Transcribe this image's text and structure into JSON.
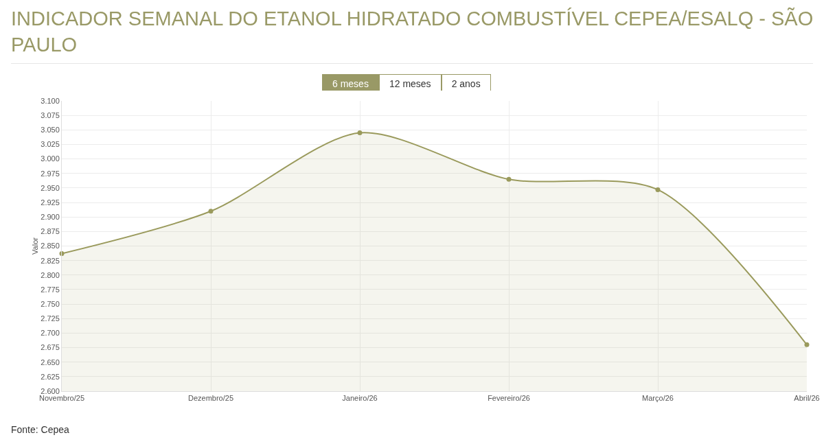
{
  "chart_data": {
    "type": "area",
    "title": "INDICADOR SEMANAL DO ETANOL HIDRATADO COMBUSTÍVEL CEPEA/ESALQ - SÃO PAULO",
    "ylabel": "Valor",
    "annotations": [
      "6 meses",
      "12 meses",
      "2 anos",
      "Fonte: Cepea"
    ],
    "categories": [
      "Novembro/25",
      "Dezembro/25",
      "Janeiro/26",
      "Fevereiro/26",
      "Março/26",
      "Abril/26"
    ],
    "values": [
      2.837,
      2.91,
      3.045,
      2.965,
      2.947,
      2.68
    ],
    "color": "#9a9a5c",
    "marker": "circle",
    "grid": true,
    "legend": false,
    "ylim": [
      2.6,
      3.1
    ],
    "yticks": [
      {
        "value": 2.6,
        "label": "2.600"
      },
      {
        "value": 2.625,
        "label": "2.625"
      },
      {
        "value": 2.65,
        "label": "2.650"
      },
      {
        "value": 2.675,
        "label": "2.675"
      },
      {
        "value": 2.7,
        "label": "2.700"
      },
      {
        "value": 2.725,
        "label": "2.725"
      },
      {
        "value": 2.75,
        "label": "2.750"
      },
      {
        "value": 2.775,
        "label": "2.775"
      },
      {
        "value": 2.8,
        "label": "2.800"
      },
      {
        "value": 2.825,
        "label": "2.825"
      },
      {
        "value": 2.85,
        "label": "2.850"
      },
      {
        "value": 2.875,
        "label": "2.875"
      },
      {
        "value": 2.9,
        "label": "2.900"
      },
      {
        "value": 2.925,
        "label": "2.925"
      },
      {
        "value": 2.95,
        "label": "2.950"
      },
      {
        "value": 2.975,
        "label": "2.975"
      },
      {
        "value": 3.0,
        "label": "3.000"
      },
      {
        "value": 3.025,
        "label": "3.025"
      },
      {
        "value": 3.05,
        "label": "3.050"
      },
      {
        "value": 3.075,
        "label": "3.075"
      },
      {
        "value": 3.1,
        "label": "3.100"
      }
    ]
  }
}
